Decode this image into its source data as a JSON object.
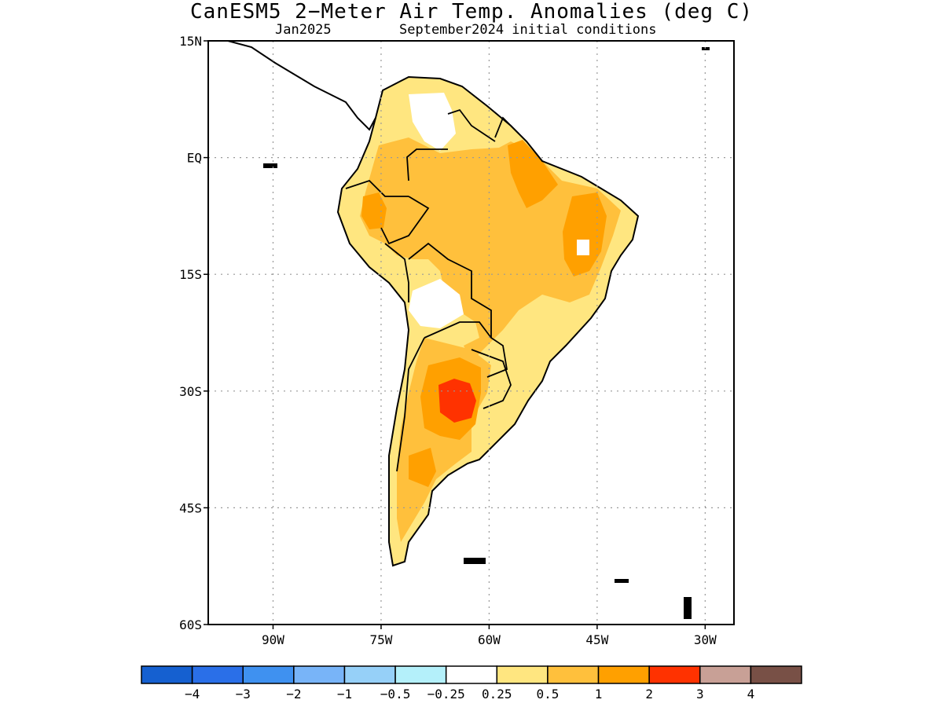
{
  "title": "CanESM5 2−Meter Air Temp. Anomalies (deg C)",
  "subtitle_left": "Jan2025",
  "subtitle_right": "September2024 initial conditions",
  "map": {
    "lon_range": [
      -99,
      -26
    ],
    "lat_range": [
      -60,
      15
    ],
    "lat_ticks": [
      {
        "value": 15,
        "label": "15N"
      },
      {
        "value": 0,
        "label": "EQ"
      },
      {
        "value": -15,
        "label": "15S"
      },
      {
        "value": -30,
        "label": "30S"
      },
      {
        "value": -45,
        "label": "45S"
      },
      {
        "value": -60,
        "label": "60S"
      }
    ],
    "lon_ticks": [
      {
        "value": -90,
        "label": "90W"
      },
      {
        "value": -75,
        "label": "75W"
      },
      {
        "value": -60,
        "label": "60W"
      },
      {
        "value": -45,
        "label": "45W"
      },
      {
        "value": -30,
        "label": "30W"
      }
    ],
    "gridlines": "dotted",
    "anomaly_colors": {
      "0.25-0.5": "#ffe680",
      "0.5-1": "#ffc03c",
      "1-2": "#ffa000",
      "2-3": "#ff3200"
    }
  },
  "colorbar": {
    "colors": [
      "#1560d0",
      "#2a6fe8",
      "#3f91f0",
      "#78b4f8",
      "#96d0f8",
      "#b4f0fa",
      "#ffffff",
      "#ffe680",
      "#ffc03c",
      "#ffa000",
      "#ff3200",
      "#c8a096",
      "#785046"
    ],
    "labels": [
      "−4",
      "−3",
      "−2",
      "−1",
      "−0.5",
      "−0.25",
      "0.25",
      "0.5",
      "1",
      "2",
      "3",
      "4"
    ]
  }
}
